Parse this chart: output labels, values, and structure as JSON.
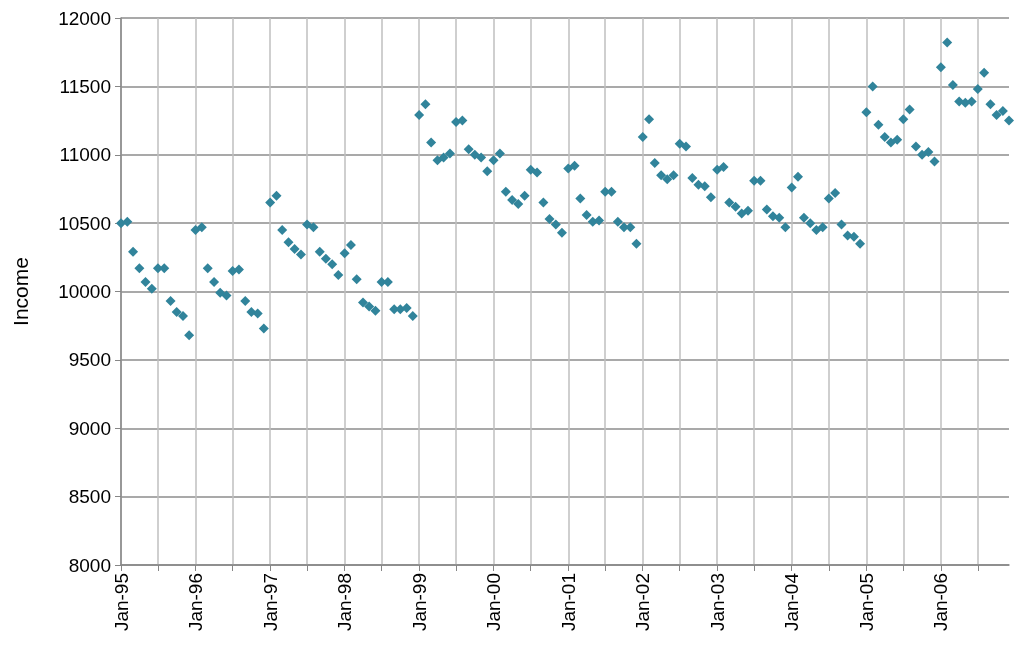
{
  "chart_data": {
    "type": "scatter",
    "ylabel": "Income",
    "x": [
      "1995-01",
      "1995-02",
      "1995-03",
      "1995-04",
      "1995-05",
      "1995-06",
      "1995-07",
      "1995-08",
      "1995-09",
      "1995-10",
      "1995-11",
      "1995-12",
      "1996-01",
      "1996-02",
      "1996-03",
      "1996-04",
      "1996-05",
      "1996-06",
      "1996-07",
      "1996-08",
      "1996-09",
      "1996-10",
      "1996-11",
      "1996-12",
      "1997-01",
      "1997-02",
      "1997-03",
      "1997-04",
      "1997-05",
      "1997-06",
      "1997-07",
      "1997-08",
      "1997-09",
      "1997-10",
      "1997-11",
      "1997-12",
      "1998-01",
      "1998-02",
      "1998-03",
      "1998-04",
      "1998-05",
      "1998-06",
      "1998-07",
      "1998-08",
      "1998-09",
      "1998-10",
      "1998-11",
      "1998-12",
      "1999-01",
      "1999-02",
      "1999-03",
      "1999-04",
      "1999-05",
      "1999-06",
      "1999-07",
      "1999-08",
      "1999-09",
      "1999-10",
      "1999-11",
      "1999-12",
      "2000-01",
      "2000-02",
      "2000-03",
      "2000-04",
      "2000-05",
      "2000-06",
      "2000-07",
      "2000-08",
      "2000-09",
      "2000-10",
      "2000-11",
      "2000-12",
      "2001-01",
      "2001-02",
      "2001-03",
      "2001-04",
      "2001-05",
      "2001-06",
      "2001-07",
      "2001-08",
      "2001-09",
      "2001-10",
      "2001-11",
      "2001-12",
      "2002-01",
      "2002-02",
      "2002-03",
      "2002-04",
      "2002-05",
      "2002-06",
      "2002-07",
      "2002-08",
      "2002-09",
      "2002-10",
      "2002-11",
      "2002-12",
      "2003-01",
      "2003-02",
      "2003-03",
      "2003-04",
      "2003-05",
      "2003-06",
      "2003-07",
      "2003-08",
      "2003-09",
      "2003-10",
      "2003-11",
      "2003-12",
      "2004-01",
      "2004-02",
      "2004-03",
      "2004-04",
      "2004-05",
      "2004-06",
      "2004-07",
      "2004-08",
      "2004-09",
      "2004-10",
      "2004-11",
      "2004-12",
      "2005-01",
      "2005-02",
      "2005-03",
      "2005-04",
      "2005-05",
      "2005-06",
      "2005-07",
      "2005-08",
      "2005-09",
      "2005-10",
      "2005-11",
      "2005-12",
      "2006-01",
      "2006-02",
      "2006-03",
      "2006-04",
      "2006-05",
      "2006-06",
      "2006-07",
      "2006-08",
      "2006-09",
      "2006-10",
      "2006-11",
      "2006-12"
    ],
    "values": [
      10500,
      10510,
      10290,
      10170,
      10070,
      10020,
      10170,
      10170,
      9930,
      9850,
      9820,
      9680,
      10450,
      10470,
      10170,
      10070,
      9990,
      9970,
      10150,
      10160,
      9930,
      9850,
      9840,
      9730,
      10650,
      10700,
      10450,
      10360,
      10310,
      10270,
      10490,
      10470,
      10290,
      10240,
      10200,
      10120,
      10280,
      10340,
      10090,
      9920,
      9890,
      9860,
      10070,
      10070,
      9870,
      9870,
      9880,
      9820,
      11290,
      11370,
      11090,
      10960,
      10980,
      11010,
      11240,
      11250,
      11040,
      11000,
      10980,
      10880,
      10960,
      11010,
      10730,
      10670,
      10640,
      10700,
      10890,
      10870,
      10650,
      10530,
      10490,
      10430,
      10900,
      10920,
      10680,
      10560,
      10510,
      10520,
      10730,
      10730,
      10510,
      10470,
      10470,
      10350,
      11130,
      11260,
      10940,
      10850,
      10820,
      10850,
      11080,
      11060,
      10830,
      10780,
      10770,
      10690,
      10890,
      10910,
      10650,
      10620,
      10570,
      10590,
      10810,
      10810,
      10600,
      10550,
      10540,
      10470,
      10760,
      10840,
      10540,
      10500,
      10450,
      10470,
      10680,
      10720,
      10490,
      10410,
      10400,
      10350,
      11310,
      11500,
      11220,
      11130,
      11090,
      11110,
      11260,
      11330,
      11060,
      11000,
      11020,
      10950,
      11640,
      11820,
      11510,
      11390,
      11380,
      11390,
      11480,
      11600,
      11370,
      11290,
      11320,
      11250
    ],
    "color": "#31849b",
    "marker": "diamond",
    "xlim": [
      "1995-01",
      "2006-12"
    ],
    "xticks": [
      {
        "value": "1995-01",
        "label": "Jan-95"
      },
      {
        "value": "1995-07",
        "label": null
      },
      {
        "value": "1996-01",
        "label": "Jan-96"
      },
      {
        "value": "1996-07",
        "label": null
      },
      {
        "value": "1997-01",
        "label": "Jan-97"
      },
      {
        "value": "1997-07",
        "label": null
      },
      {
        "value": "1998-01",
        "label": "Jan-98"
      },
      {
        "value": "1998-07",
        "label": null
      },
      {
        "value": "1999-01",
        "label": "Jan-99"
      },
      {
        "value": "1999-07",
        "label": null
      },
      {
        "value": "2000-01",
        "label": "Jan-00"
      },
      {
        "value": "2000-07",
        "label": null
      },
      {
        "value": "2001-01",
        "label": "Jan-01"
      },
      {
        "value": "2001-07",
        "label": null
      },
      {
        "value": "2002-01",
        "label": "Jan-02"
      },
      {
        "value": "2002-07",
        "label": null
      },
      {
        "value": "2003-01",
        "label": "Jan-03"
      },
      {
        "value": "2003-07",
        "label": null
      },
      {
        "value": "2004-01",
        "label": "Jan-04"
      },
      {
        "value": "2004-07",
        "label": null
      },
      {
        "value": "2005-01",
        "label": "Jan-05"
      },
      {
        "value": "2005-07",
        "label": null
      },
      {
        "value": "2006-01",
        "label": "Jan-06"
      },
      {
        "value": "2006-07",
        "label": null
      }
    ],
    "ylim": [
      8000,
      12000
    ],
    "yticks": [
      8000,
      8500,
      9000,
      9500,
      10000,
      10500,
      11000,
      11500,
      12000
    ],
    "grid": true
  }
}
